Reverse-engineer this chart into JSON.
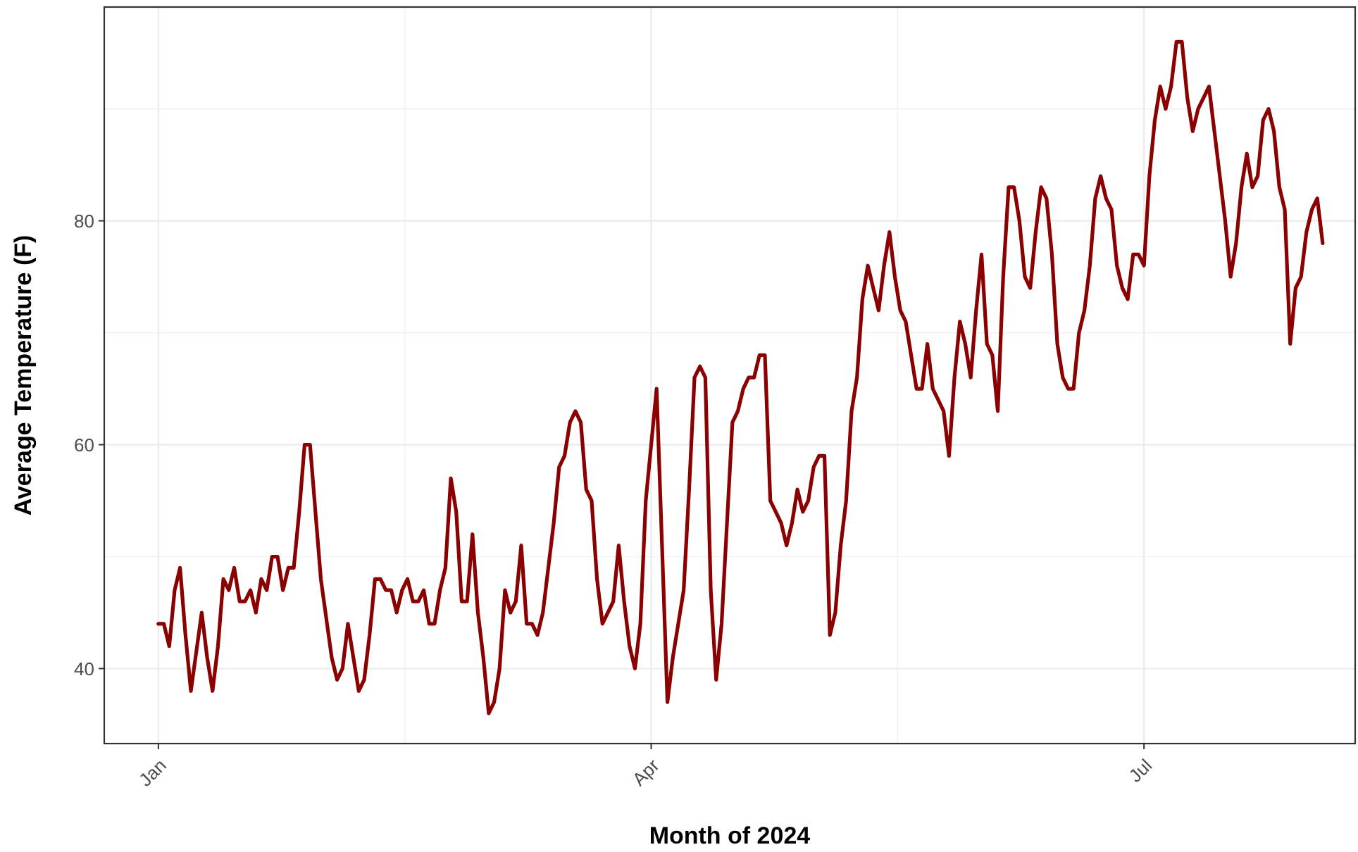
{
  "chart_data": {
    "type": "line",
    "xlabel": "Month of 2024",
    "ylabel": "Average Temperature (F)",
    "xlim": [
      "2023-12-22",
      "2024-08-09"
    ],
    "ylim": [
      33.3,
      99.1
    ],
    "xticks": [
      {
        "value": "2024-01-01",
        "label": "Jan"
      },
      {
        "value": "2024-04-01",
        "label": "Apr"
      },
      {
        "value": "2024-07-01",
        "label": "Jul"
      }
    ],
    "yticks": [
      40,
      60,
      80
    ],
    "grid": true,
    "marker": "none",
    "line_style": "solid",
    "series": [
      {
        "color": "#8b0000",
        "x": [
          "2024-01-01",
          "2024-01-02",
          "2024-01-03",
          "2024-01-04",
          "2024-01-05",
          "2024-01-06",
          "2024-01-07",
          "2024-01-09",
          "2024-01-10",
          "2024-01-11",
          "2024-01-12",
          "2024-01-13",
          "2024-01-14",
          "2024-01-15",
          "2024-01-16",
          "2024-01-17",
          "2024-01-18",
          "2024-01-19",
          "2024-01-20",
          "2024-01-21",
          "2024-01-22",
          "2024-01-23",
          "2024-01-24",
          "2024-01-25",
          "2024-01-26",
          "2024-01-27",
          "2024-01-28",
          "2024-01-29",
          "2024-01-30",
          "2024-01-31",
          "2024-02-02",
          "2024-02-03",
          "2024-02-04",
          "2024-02-05",
          "2024-02-07",
          "2024-02-08",
          "2024-02-09",
          "2024-02-10",
          "2024-02-11",
          "2024-02-12",
          "2024-02-13",
          "2024-02-14",
          "2024-02-15",
          "2024-02-16",
          "2024-02-17",
          "2024-02-18",
          "2024-02-19",
          "2024-02-20",
          "2024-02-21",
          "2024-02-22",
          "2024-02-23",
          "2024-02-24",
          "2024-02-25",
          "2024-02-26",
          "2024-02-27",
          "2024-02-28",
          "2024-02-29",
          "2024-03-01",
          "2024-03-02",
          "2024-03-03",
          "2024-03-04",
          "2024-03-05",
          "2024-03-06",
          "2024-03-07",
          "2024-03-08",
          "2024-03-09",
          "2024-03-10",
          "2024-03-11",
          "2024-03-12",
          "2024-03-13",
          "2024-03-14",
          "2024-03-15",
          "2024-03-16",
          "2024-03-17",
          "2024-03-18",
          "2024-03-19",
          "2024-03-20",
          "2024-03-21",
          "2024-03-22",
          "2024-03-23",
          "2024-03-25",
          "2024-03-26",
          "2024-03-27",
          "2024-03-28",
          "2024-03-29",
          "2024-03-30",
          "2024-03-31",
          "2024-04-02",
          "2024-04-04",
          "2024-04-05",
          "2024-04-07",
          "2024-04-08",
          "2024-04-09",
          "2024-04-10",
          "2024-04-11",
          "2024-04-12",
          "2024-04-13",
          "2024-04-14",
          "2024-04-16",
          "2024-04-17",
          "2024-04-18",
          "2024-04-19",
          "2024-04-20",
          "2024-04-21",
          "2024-04-22",
          "2024-04-23",
          "2024-04-24",
          "2024-04-25",
          "2024-04-26",
          "2024-04-27",
          "2024-04-28",
          "2024-04-29",
          "2024-04-30",
          "2024-05-01",
          "2024-05-02",
          "2024-05-03",
          "2024-05-04",
          "2024-05-05",
          "2024-05-06",
          "2024-05-07",
          "2024-05-08",
          "2024-05-09",
          "2024-05-10",
          "2024-05-11",
          "2024-05-12",
          "2024-05-13",
          "2024-05-14",
          "2024-05-15",
          "2024-05-16",
          "2024-05-17",
          "2024-05-18",
          "2024-05-20",
          "2024-05-21",
          "2024-05-22",
          "2024-05-23",
          "2024-05-24",
          "2024-05-25",
          "2024-05-26",
          "2024-05-27",
          "2024-05-28",
          "2024-05-29",
          "2024-05-30",
          "2024-05-31",
          "2024-06-01",
          "2024-06-02",
          "2024-06-03",
          "2024-06-04",
          "2024-06-05",
          "2024-06-06",
          "2024-06-07",
          "2024-06-08",
          "2024-06-09",
          "2024-06-10",
          "2024-06-11",
          "2024-06-12",
          "2024-06-13",
          "2024-06-14",
          "2024-06-15",
          "2024-06-16",
          "2024-06-17",
          "2024-06-18",
          "2024-06-19",
          "2024-06-20",
          "2024-06-21",
          "2024-06-22",
          "2024-06-23",
          "2024-06-24",
          "2024-06-25",
          "2024-06-26",
          "2024-06-27",
          "2024-06-28",
          "2024-06-29",
          "2024-06-30",
          "2024-07-01",
          "2024-07-02",
          "2024-07-03",
          "2024-07-04",
          "2024-07-05",
          "2024-07-06",
          "2024-07-07",
          "2024-07-08",
          "2024-07-09",
          "2024-07-10",
          "2024-07-11",
          "2024-07-12",
          "2024-07-13",
          "2024-07-14",
          "2024-07-15",
          "2024-07-16",
          "2024-07-17",
          "2024-07-18",
          "2024-07-19",
          "2024-07-20",
          "2024-07-21",
          "2024-07-22",
          "2024-07-23",
          "2024-07-24",
          "2024-07-25",
          "2024-07-26",
          "2024-07-27",
          "2024-07-28",
          "2024-07-29",
          "2024-07-30",
          "2024-07-31",
          "2024-08-01",
          "2024-08-02",
          "2024-08-03"
        ],
        "values": [
          44,
          44,
          42,
          47,
          49,
          43,
          38,
          45,
          41,
          38,
          42,
          48,
          47,
          49,
          46,
          46,
          47,
          45,
          48,
          47,
          50,
          50,
          47,
          49,
          49,
          54,
          60,
          60,
          54,
          48,
          41,
          39,
          40,
          44,
          38,
          39,
          43,
          48,
          48,
          47,
          47,
          45,
          47,
          48,
          46,
          46,
          47,
          44,
          44,
          47,
          49,
          57,
          54,
          46,
          46,
          52,
          45,
          41,
          36,
          37,
          40,
          47,
          45,
          46,
          51,
          44,
          44,
          43,
          45,
          49,
          53,
          58,
          59,
          62,
          63,
          62,
          56,
          55,
          48,
          44,
          46,
          51,
          46,
          42,
          40,
          44,
          55,
          65,
          37,
          41,
          47,
          56,
          66,
          67,
          66,
          47,
          39,
          44,
          62,
          63,
          65,
          66,
          66,
          68,
          68,
          55,
          54,
          53,
          51,
          53,
          56,
          54,
          55,
          58,
          59,
          59,
          43,
          45,
          51,
          55,
          63,
          66,
          73,
          76,
          74,
          72,
          76,
          79,
          75,
          72,
          71,
          65,
          65,
          69,
          65,
          64,
          63,
          59,
          66,
          71,
          69,
          66,
          72,
          77,
          69,
          68,
          63,
          75,
          83,
          83,
          80,
          75,
          74,
          79,
          83,
          82,
          77,
          69,
          66,
          65,
          65,
          70,
          72,
          76,
          82,
          84,
          82,
          81,
          76,
          74,
          73,
          77,
          77,
          76,
          84,
          89,
          92,
          90,
          92,
          96,
          96,
          91,
          88,
          90,
          91,
          92,
          88,
          84,
          80,
          75,
          78,
          83,
          86,
          83,
          84,
          89,
          90,
          88,
          83,
          81,
          69,
          74,
          75,
          79,
          81,
          82,
          78
        ]
      }
    ]
  }
}
